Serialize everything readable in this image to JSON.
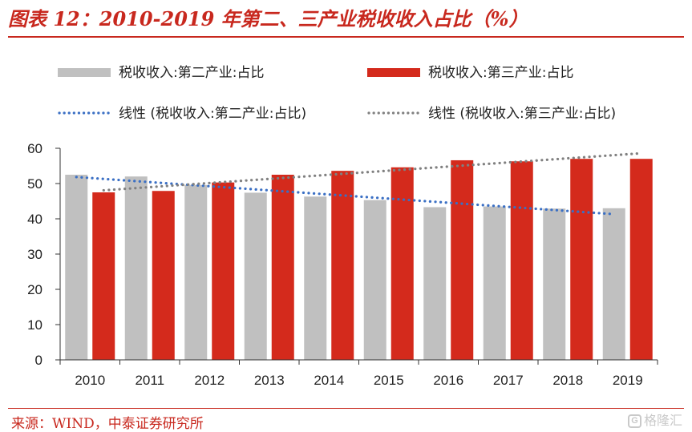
{
  "page": {
    "title": "图表 12：2010-2019 年第二、三产业税收收入占比（%）",
    "source": "来源：WIND，中泰证券研究所",
    "watermark_icon": "G",
    "watermark_text": "格隆汇"
  },
  "chart_data": {
    "type": "bar",
    "categories": [
      "2010",
      "2011",
      "2012",
      "2013",
      "2014",
      "2015",
      "2016",
      "2017",
      "2018",
      "2019"
    ],
    "series": [
      {
        "name": "税收收入:第二产业:占比",
        "color": "#c0c0c0",
        "values": [
          52.5,
          52.0,
          49.6,
          47.4,
          46.3,
          45.3,
          43.3,
          43.5,
          42.9,
          43.0
        ]
      },
      {
        "name": "税收收入:第三产业:占比",
        "color": "#d42a1c",
        "values": [
          47.5,
          47.9,
          50.3,
          52.5,
          53.6,
          54.6,
          56.6,
          56.3,
          57.0,
          57.0
        ]
      }
    ],
    "trendlines": [
      {
        "name": "线性 (税收收入:第二产业:占比)",
        "color": "#3a6fc4",
        "type": "linear",
        "of": "税收收入:第二产业:占比"
      },
      {
        "name": "线性 (税收收入:第三产业:占比)",
        "color": "#808080",
        "type": "linear",
        "of": "税收收入:第三产业:占比"
      }
    ],
    "ylim": [
      0,
      60
    ],
    "yticks": [
      0,
      10,
      20,
      30,
      40,
      50,
      60
    ],
    "grid": false,
    "legend_position": "top"
  }
}
